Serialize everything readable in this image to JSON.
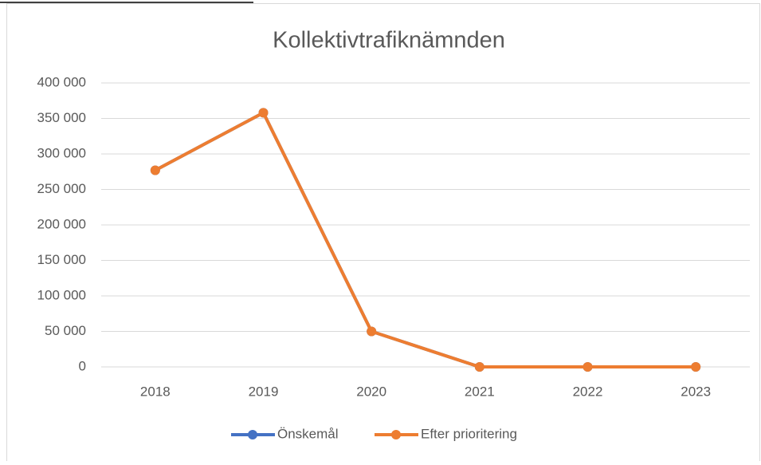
{
  "chart_data": {
    "type": "line",
    "title": "Kollektivtrafiknämnden",
    "categories": [
      "2018",
      "2019",
      "2020",
      "2021",
      "2022",
      "2023"
    ],
    "series": [
      {
        "name": "Önskemål",
        "color": "#4472c4",
        "values": [
          277000,
          358000,
          50000,
          0,
          0,
          0
        ]
      },
      {
        "name": "Efter prioritering",
        "color": "#ed7d31",
        "values": [
          277000,
          358000,
          50000,
          0,
          0,
          0
        ]
      }
    ],
    "ylim": [
      0,
      400000
    ],
    "yticks": [
      0,
      {
        "value": 50000,
        "label": "50 000"
      },
      {
        "value": 100000,
        "label": "100 000"
      },
      {
        "value": 150000,
        "label": "150 000"
      },
      {
        "value": 200000,
        "label": "200 000"
      },
      {
        "value": 250000,
        "label": "250 000"
      },
      {
        "value": 300000,
        "label": "300 000"
      },
      {
        "value": 350000,
        "label": "350 000"
      },
      {
        "value": 400000,
        "label": "400 000"
      }
    ],
    "grid": true,
    "legend": "bottom"
  }
}
